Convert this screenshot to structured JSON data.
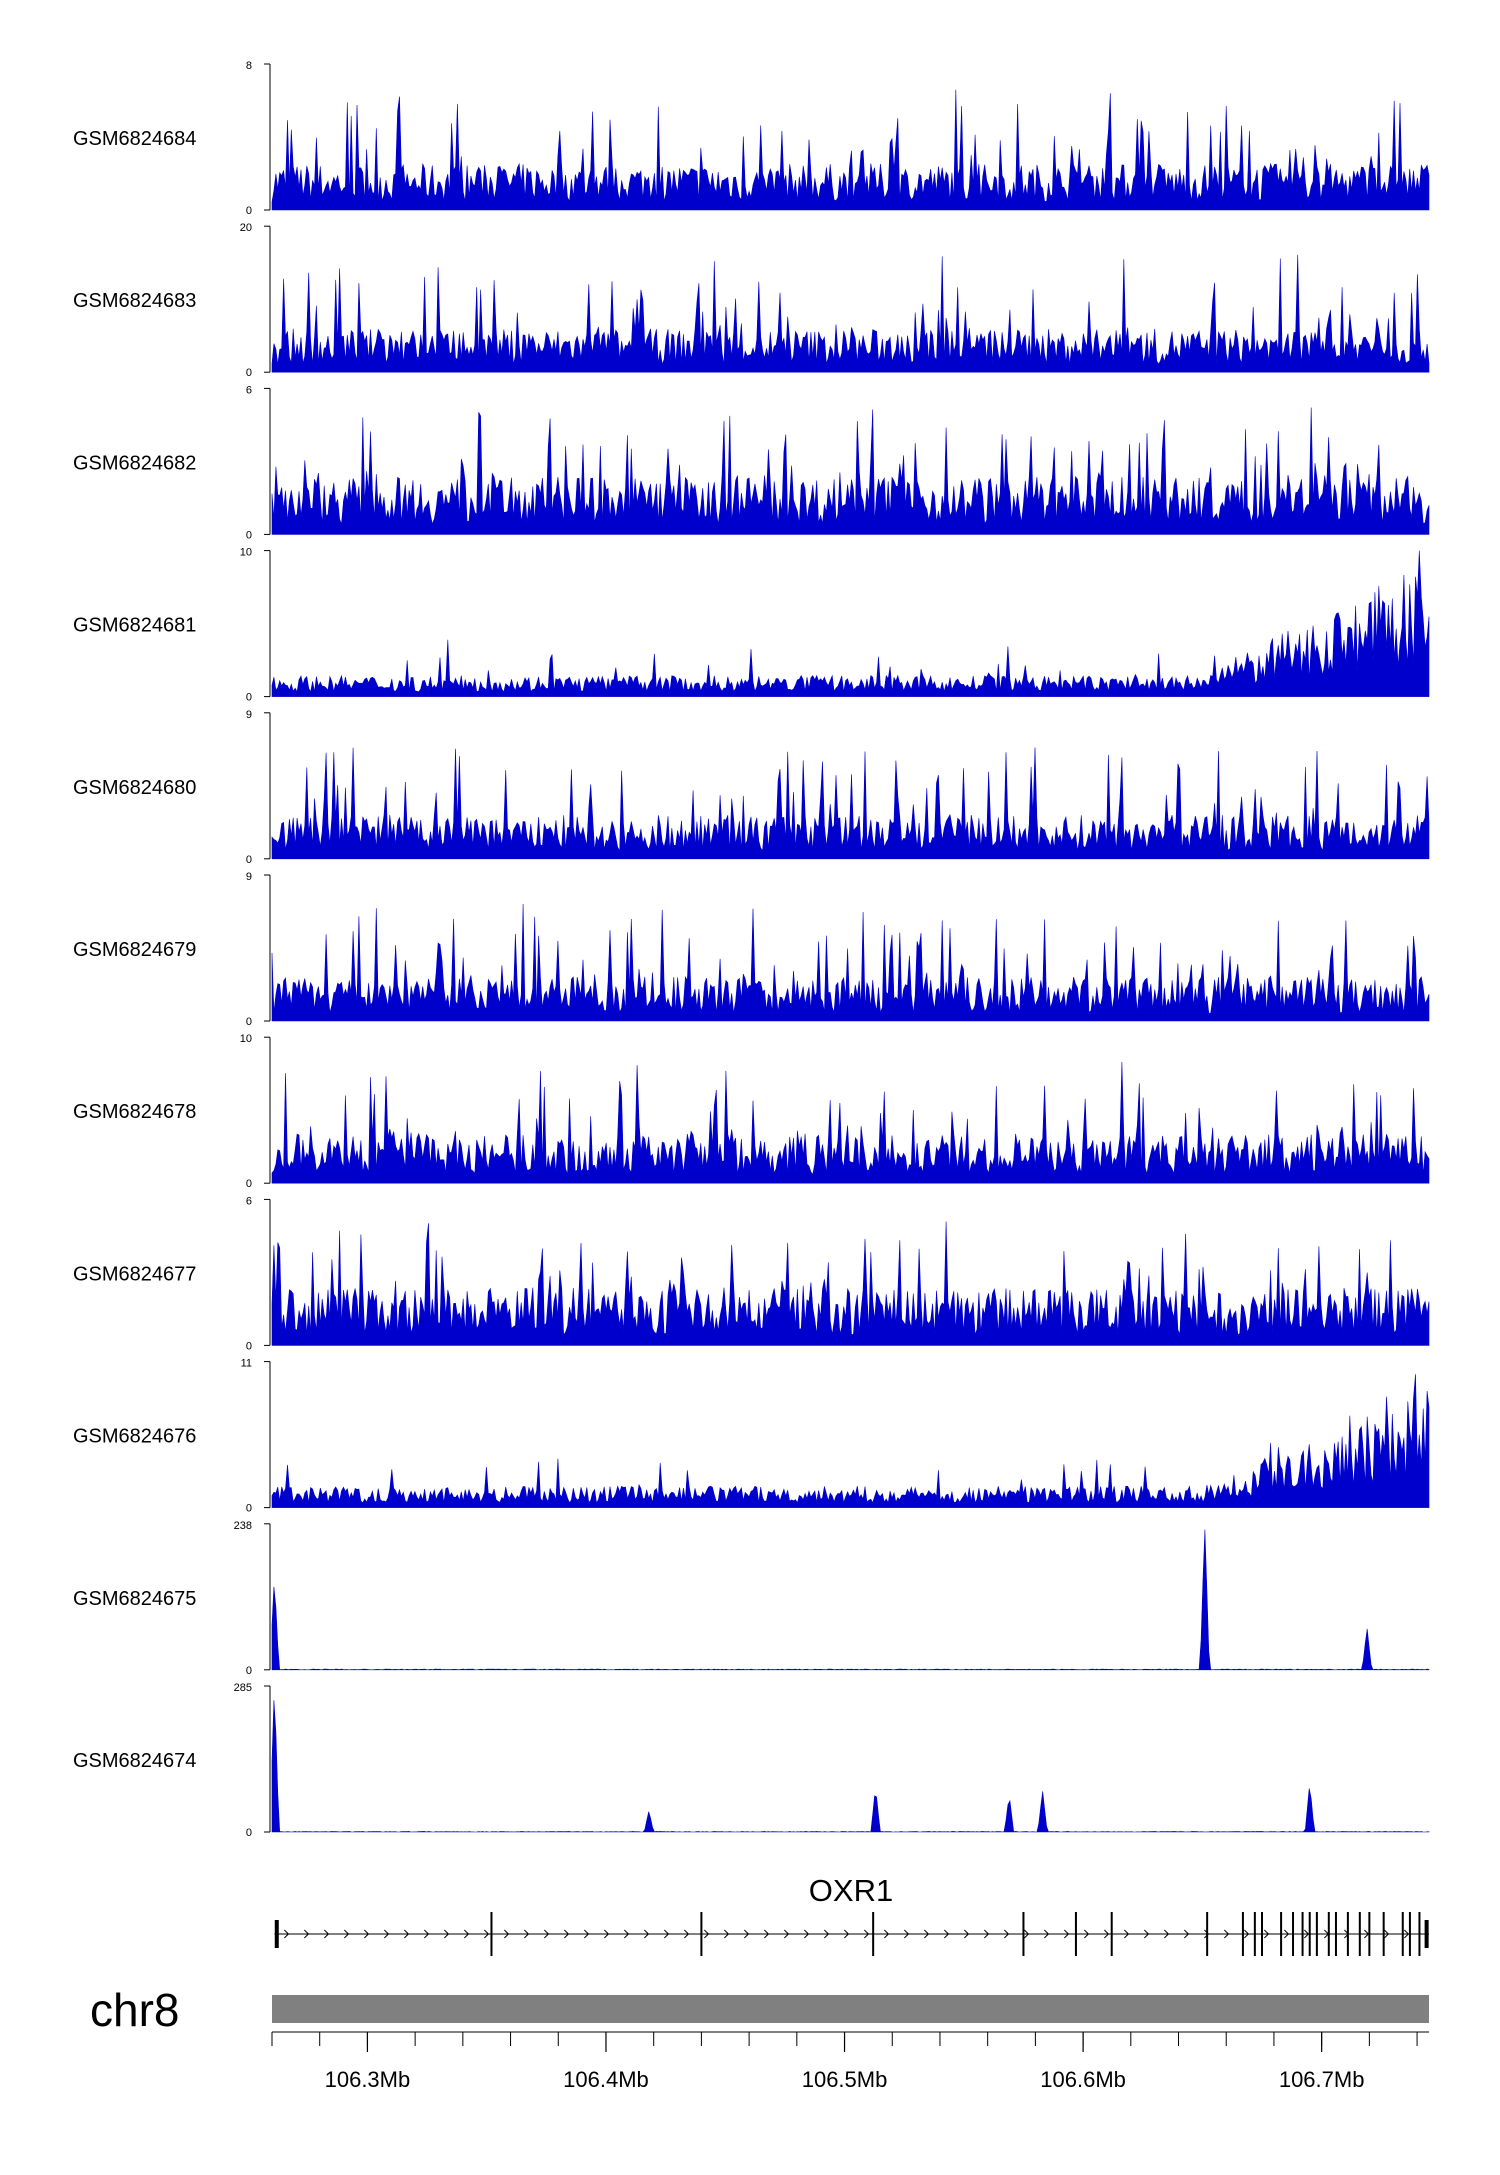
{
  "chart_data": {
    "type": "area",
    "chromosome": "chr8",
    "gene": "OXR1",
    "x_ticks": [
      {
        "value": 106.3,
        "label": "106.3Mb"
      },
      {
        "value": 106.4,
        "label": "106.4Mb"
      },
      {
        "value": 106.5,
        "label": "106.5Mb"
      },
      {
        "value": 106.6,
        "label": "106.6Mb"
      },
      {
        "value": 106.7,
        "label": "106.7Mb"
      }
    ],
    "xlim": [
      106.26,
      106.745
    ],
    "series": [
      {
        "name": "GSM6824684",
        "ymax": 8,
        "ymin": 0,
        "max_label": "8",
        "min_label": "0",
        "profile": "flat",
        "base": 1.5
      },
      {
        "name": "GSM6824683",
        "ymax": 20,
        "ymin": 0,
        "max_label": "20",
        "min_label": "0",
        "profile": "flat",
        "base": 3.5
      },
      {
        "name": "GSM6824682",
        "ymax": 6,
        "ymin": 0,
        "max_label": "6",
        "min_label": "0",
        "profile": "flat",
        "base": 1.4
      },
      {
        "name": "GSM6824681",
        "ymax": 10,
        "ymin": 0,
        "max_label": "10",
        "min_label": "0",
        "profile": "rising",
        "base": 0.8
      },
      {
        "name": "GSM6824680",
        "ymax": 9,
        "ymin": 0,
        "max_label": "9",
        "min_label": "0",
        "profile": "flat",
        "base": 1.6
      },
      {
        "name": "GSM6824679",
        "ymax": 9,
        "ymin": 0,
        "max_label": "9",
        "min_label": "0",
        "profile": "flat",
        "base": 1.6
      },
      {
        "name": "GSM6824678",
        "ymax": 10,
        "ymin": 0,
        "max_label": "10",
        "min_label": "0",
        "profile": "flat",
        "base": 2.0
      },
      {
        "name": "GSM6824677",
        "ymax": 6,
        "ymin": 0,
        "max_label": "6",
        "min_label": "0",
        "profile": "flat",
        "base": 1.4
      },
      {
        "name": "GSM6824676",
        "ymax": 11,
        "ymin": 0,
        "max_label": "11",
        "min_label": "0",
        "profile": "rising",
        "base": 0.9
      },
      {
        "name": "GSM6824675",
        "ymax": 238,
        "ymin": 0,
        "max_label": "238",
        "min_label": "0",
        "profile": "peaks",
        "peaks": [
          {
            "x": 106.261,
            "y": 150
          },
          {
            "x": 106.651,
            "y": 238
          },
          {
            "x": 106.719,
            "y": 70
          }
        ]
      },
      {
        "name": "GSM6824674",
        "ymax": 285,
        "ymin": 0,
        "max_label": "285",
        "min_label": "0",
        "profile": "peaks",
        "peaks": [
          {
            "x": 106.261,
            "y": 285
          },
          {
            "x": 106.418,
            "y": 42
          },
          {
            "x": 106.513,
            "y": 88
          },
          {
            "x": 106.569,
            "y": 72
          },
          {
            "x": 106.583,
            "y": 82
          },
          {
            "x": 106.695,
            "y": 95
          }
        ]
      }
    ],
    "gene_model": {
      "name": "OXR1",
      "start": 106.261,
      "end": 106.745,
      "exons": [
        106.262,
        106.352,
        106.44,
        106.512,
        106.575,
        106.597,
        106.612,
        106.652,
        106.667,
        106.672,
        106.675,
        106.683,
        106.688,
        106.692,
        106.695,
        106.698,
        106.703,
        106.706,
        106.711,
        106.716,
        106.72,
        106.726,
        106.734,
        106.737,
        106.741,
        106.744
      ]
    }
  }
}
